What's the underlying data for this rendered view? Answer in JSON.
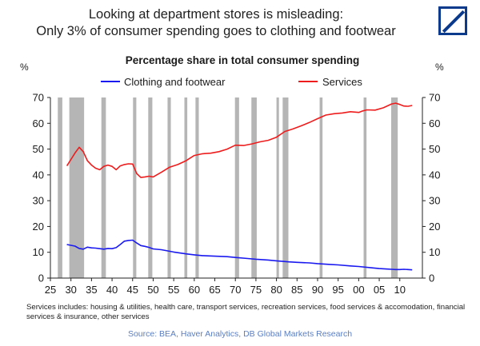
{
  "header": {
    "title_line1": "Looking at department stores is misleading:",
    "title_line2": "Only 3% of consumer spending goes to clothing and footwear",
    "logo_name": "deutsche-bank-logo"
  },
  "notes": {
    "services_includes": "Services includes: housing & utilities, health care, transport services, recreation services, food services & accomodation, financial services & insurance, other services"
  },
  "source": "Source: BEA, Haver Analytics,  DB Global Markets Research",
  "colors": {
    "clothing": "#1a1af0",
    "services": "#ee1c1c",
    "recession": "#b5b5b5"
  },
  "chart_data": {
    "type": "line",
    "title": "Percentage share in total consumer spending",
    "ylabel_left": "%",
    "ylabel_right": "%",
    "ylim": [
      0,
      70
    ],
    "xlim": [
      1925,
      2015.5
    ],
    "yticks": [
      0,
      10,
      20,
      30,
      40,
      50,
      60,
      70
    ],
    "xticks": [
      {
        "v": 1925,
        "l": "25"
      },
      {
        "v": 1930,
        "l": "30"
      },
      {
        "v": 1935,
        "l": "35"
      },
      {
        "v": 1940,
        "l": "40"
      },
      {
        "v": 1945,
        "l": "45"
      },
      {
        "v": 1950,
        "l": "50"
      },
      {
        "v": 1955,
        "l": "55"
      },
      {
        "v": 1960,
        "l": "60"
      },
      {
        "v": 1965,
        "l": "65"
      },
      {
        "v": 1970,
        "l": "70"
      },
      {
        "v": 1975,
        "l": "75"
      },
      {
        "v": 1980,
        "l": "80"
      },
      {
        "v": 1985,
        "l": "85"
      },
      {
        "v": 1990,
        "l": "90"
      },
      {
        "v": 1995,
        "l": "95"
      },
      {
        "v": 2000,
        "l": "00"
      },
      {
        "v": 2005,
        "l": "05"
      },
      {
        "v": 2010,
        "l": "10"
      }
    ],
    "legend_position": "top",
    "grid": false,
    "recessions": [
      [
        1926.8,
        1927.9
      ],
      [
        1929.6,
        1933.2
      ],
      [
        1937.4,
        1938.5
      ],
      [
        1945.1,
        1945.9
      ],
      [
        1948.8,
        1949.8
      ],
      [
        1953.5,
        1954.3
      ],
      [
        1957.6,
        1958.3
      ],
      [
        1960.3,
        1961.1
      ],
      [
        1969.9,
        1970.9
      ],
      [
        1973.9,
        1975.2
      ],
      [
        1980.0,
        1980.6
      ],
      [
        1981.5,
        1982.9
      ],
      [
        1990.5,
        1991.2
      ],
      [
        2001.2,
        2001.9
      ],
      [
        2007.9,
        2009.5
      ]
    ],
    "series": [
      {
        "name": "Clothing and footwear",
        "points": [
          [
            1929,
            13.0
          ],
          [
            1930,
            12.7
          ],
          [
            1931,
            12.4
          ],
          [
            1932,
            11.5
          ],
          [
            1933,
            11.2
          ],
          [
            1934,
            12.0
          ],
          [
            1935,
            11.7
          ],
          [
            1936,
            11.6
          ],
          [
            1937,
            11.4
          ],
          [
            1938,
            11.2
          ],
          [
            1939,
            11.5
          ],
          [
            1940,
            11.4
          ],
          [
            1941,
            11.8
          ],
          [
            1942,
            13.0
          ],
          [
            1943,
            14.3
          ],
          [
            1944,
            14.6
          ],
          [
            1945,
            14.7
          ],
          [
            1946,
            13.6
          ],
          [
            1947,
            12.6
          ],
          [
            1948,
            12.3
          ],
          [
            1949,
            11.9
          ],
          [
            1950,
            11.3
          ],
          [
            1952,
            11.0
          ],
          [
            1955,
            10.1
          ],
          [
            1958,
            9.4
          ],
          [
            1960,
            9.0
          ],
          [
            1962,
            8.7
          ],
          [
            1965,
            8.5
          ],
          [
            1968,
            8.3
          ],
          [
            1970,
            8.0
          ],
          [
            1973,
            7.6
          ],
          [
            1975,
            7.3
          ],
          [
            1978,
            7.0
          ],
          [
            1980,
            6.7
          ],
          [
            1983,
            6.3
          ],
          [
            1985,
            6.1
          ],
          [
            1988,
            5.9
          ],
          [
            1990,
            5.6
          ],
          [
            1993,
            5.3
          ],
          [
            1995,
            5.1
          ],
          [
            1998,
            4.7
          ],
          [
            2000,
            4.5
          ],
          [
            2003,
            4.0
          ],
          [
            2005,
            3.7
          ],
          [
            2007,
            3.5
          ],
          [
            2008,
            3.4
          ],
          [
            2009,
            3.3
          ],
          [
            2010,
            3.3
          ],
          [
            2011,
            3.4
          ],
          [
            2012,
            3.3
          ],
          [
            2013,
            3.2
          ]
        ]
      },
      {
        "name": "Services",
        "points": [
          [
            1929,
            43.5
          ],
          [
            1930,
            46.0
          ],
          [
            1931,
            48.5
          ],
          [
            1932,
            50.7
          ],
          [
            1933,
            49.0
          ],
          [
            1934,
            45.5
          ],
          [
            1935,
            43.8
          ],
          [
            1936,
            42.6
          ],
          [
            1937,
            42.0
          ],
          [
            1938,
            43.3
          ],
          [
            1939,
            43.8
          ],
          [
            1940,
            43.3
          ],
          [
            1941,
            42.0
          ],
          [
            1942,
            43.5
          ],
          [
            1943,
            44.0
          ],
          [
            1944,
            44.3
          ],
          [
            1945,
            44.2
          ],
          [
            1946,
            40.5
          ],
          [
            1947,
            39.0
          ],
          [
            1948,
            39.2
          ],
          [
            1949,
            39.5
          ],
          [
            1950,
            39.2
          ],
          [
            1952,
            41.0
          ],
          [
            1954,
            43.0
          ],
          [
            1956,
            44.0
          ],
          [
            1958,
            45.5
          ],
          [
            1960,
            47.5
          ],
          [
            1962,
            48.2
          ],
          [
            1964,
            48.4
          ],
          [
            1966,
            49.0
          ],
          [
            1968,
            50.0
          ],
          [
            1970,
            51.5
          ],
          [
            1972,
            51.4
          ],
          [
            1974,
            52.0
          ],
          [
            1976,
            52.8
          ],
          [
            1978,
            53.4
          ],
          [
            1980,
            54.6
          ],
          [
            1982,
            56.8
          ],
          [
            1984,
            57.8
          ],
          [
            1986,
            59.0
          ],
          [
            1988,
            60.3
          ],
          [
            1990,
            61.8
          ],
          [
            1992,
            63.2
          ],
          [
            1994,
            63.7
          ],
          [
            1996,
            64.0
          ],
          [
            1998,
            64.5
          ],
          [
            2000,
            64.2
          ],
          [
            2001,
            64.8
          ],
          [
            2002,
            65.2
          ],
          [
            2004,
            65.1
          ],
          [
            2006,
            66.0
          ],
          [
            2008,
            67.5
          ],
          [
            2009,
            67.8
          ],
          [
            2010,
            67.3
          ],
          [
            2011,
            66.7
          ],
          [
            2012,
            66.6
          ],
          [
            2013,
            66.9
          ]
        ]
      }
    ]
  }
}
